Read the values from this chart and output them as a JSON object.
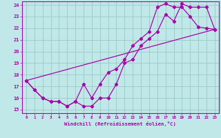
{
  "xlabel": "Windchill (Refroidissement éolien,°C)",
  "xlim": [
    -0.5,
    23.5
  ],
  "ylim": [
    14.7,
    24.3
  ],
  "yticks": [
    15,
    16,
    17,
    18,
    19,
    20,
    21,
    22,
    23,
    24
  ],
  "xticks": [
    0,
    1,
    2,
    3,
    4,
    5,
    6,
    7,
    8,
    9,
    10,
    11,
    12,
    13,
    14,
    15,
    16,
    17,
    18,
    19,
    20,
    21,
    22,
    23
  ],
  "bg_color": "#c0e8e8",
  "grid_color": "#a0cccc",
  "line_color": "#aa00aa",
  "line1_x": [
    0,
    1,
    2,
    3,
    4,
    5,
    6,
    7,
    8,
    9,
    10,
    11,
    12,
    13,
    14,
    15,
    16,
    17,
    18,
    19,
    20,
    21,
    22,
    23
  ],
  "line1_y": [
    17.5,
    16.7,
    16.0,
    15.7,
    15.7,
    15.3,
    15.7,
    15.3,
    15.3,
    16.0,
    16.0,
    17.2,
    19.0,
    19.3,
    20.5,
    21.1,
    21.7,
    23.2,
    22.6,
    24.1,
    23.8,
    23.8,
    23.8,
    21.9
  ],
  "line2_x": [
    0,
    1,
    2,
    3,
    4,
    5,
    6,
    7,
    8,
    9,
    10,
    11,
    12,
    13,
    14,
    15,
    16,
    17,
    18,
    19,
    20,
    21,
    22,
    23
  ],
  "line2_y": [
    17.5,
    16.7,
    16.0,
    15.7,
    15.7,
    15.3,
    15.7,
    17.2,
    16.0,
    17.2,
    18.2,
    18.5,
    19.3,
    20.5,
    21.1,
    21.7,
    23.8,
    24.1,
    23.8,
    23.8,
    23.0,
    22.1,
    22.0,
    21.9
  ],
  "line3_x": [
    0,
    23
  ],
  "line3_y": [
    17.5,
    21.9
  ],
  "marker": "D",
  "markersize": 2.2,
  "linewidth": 0.9
}
